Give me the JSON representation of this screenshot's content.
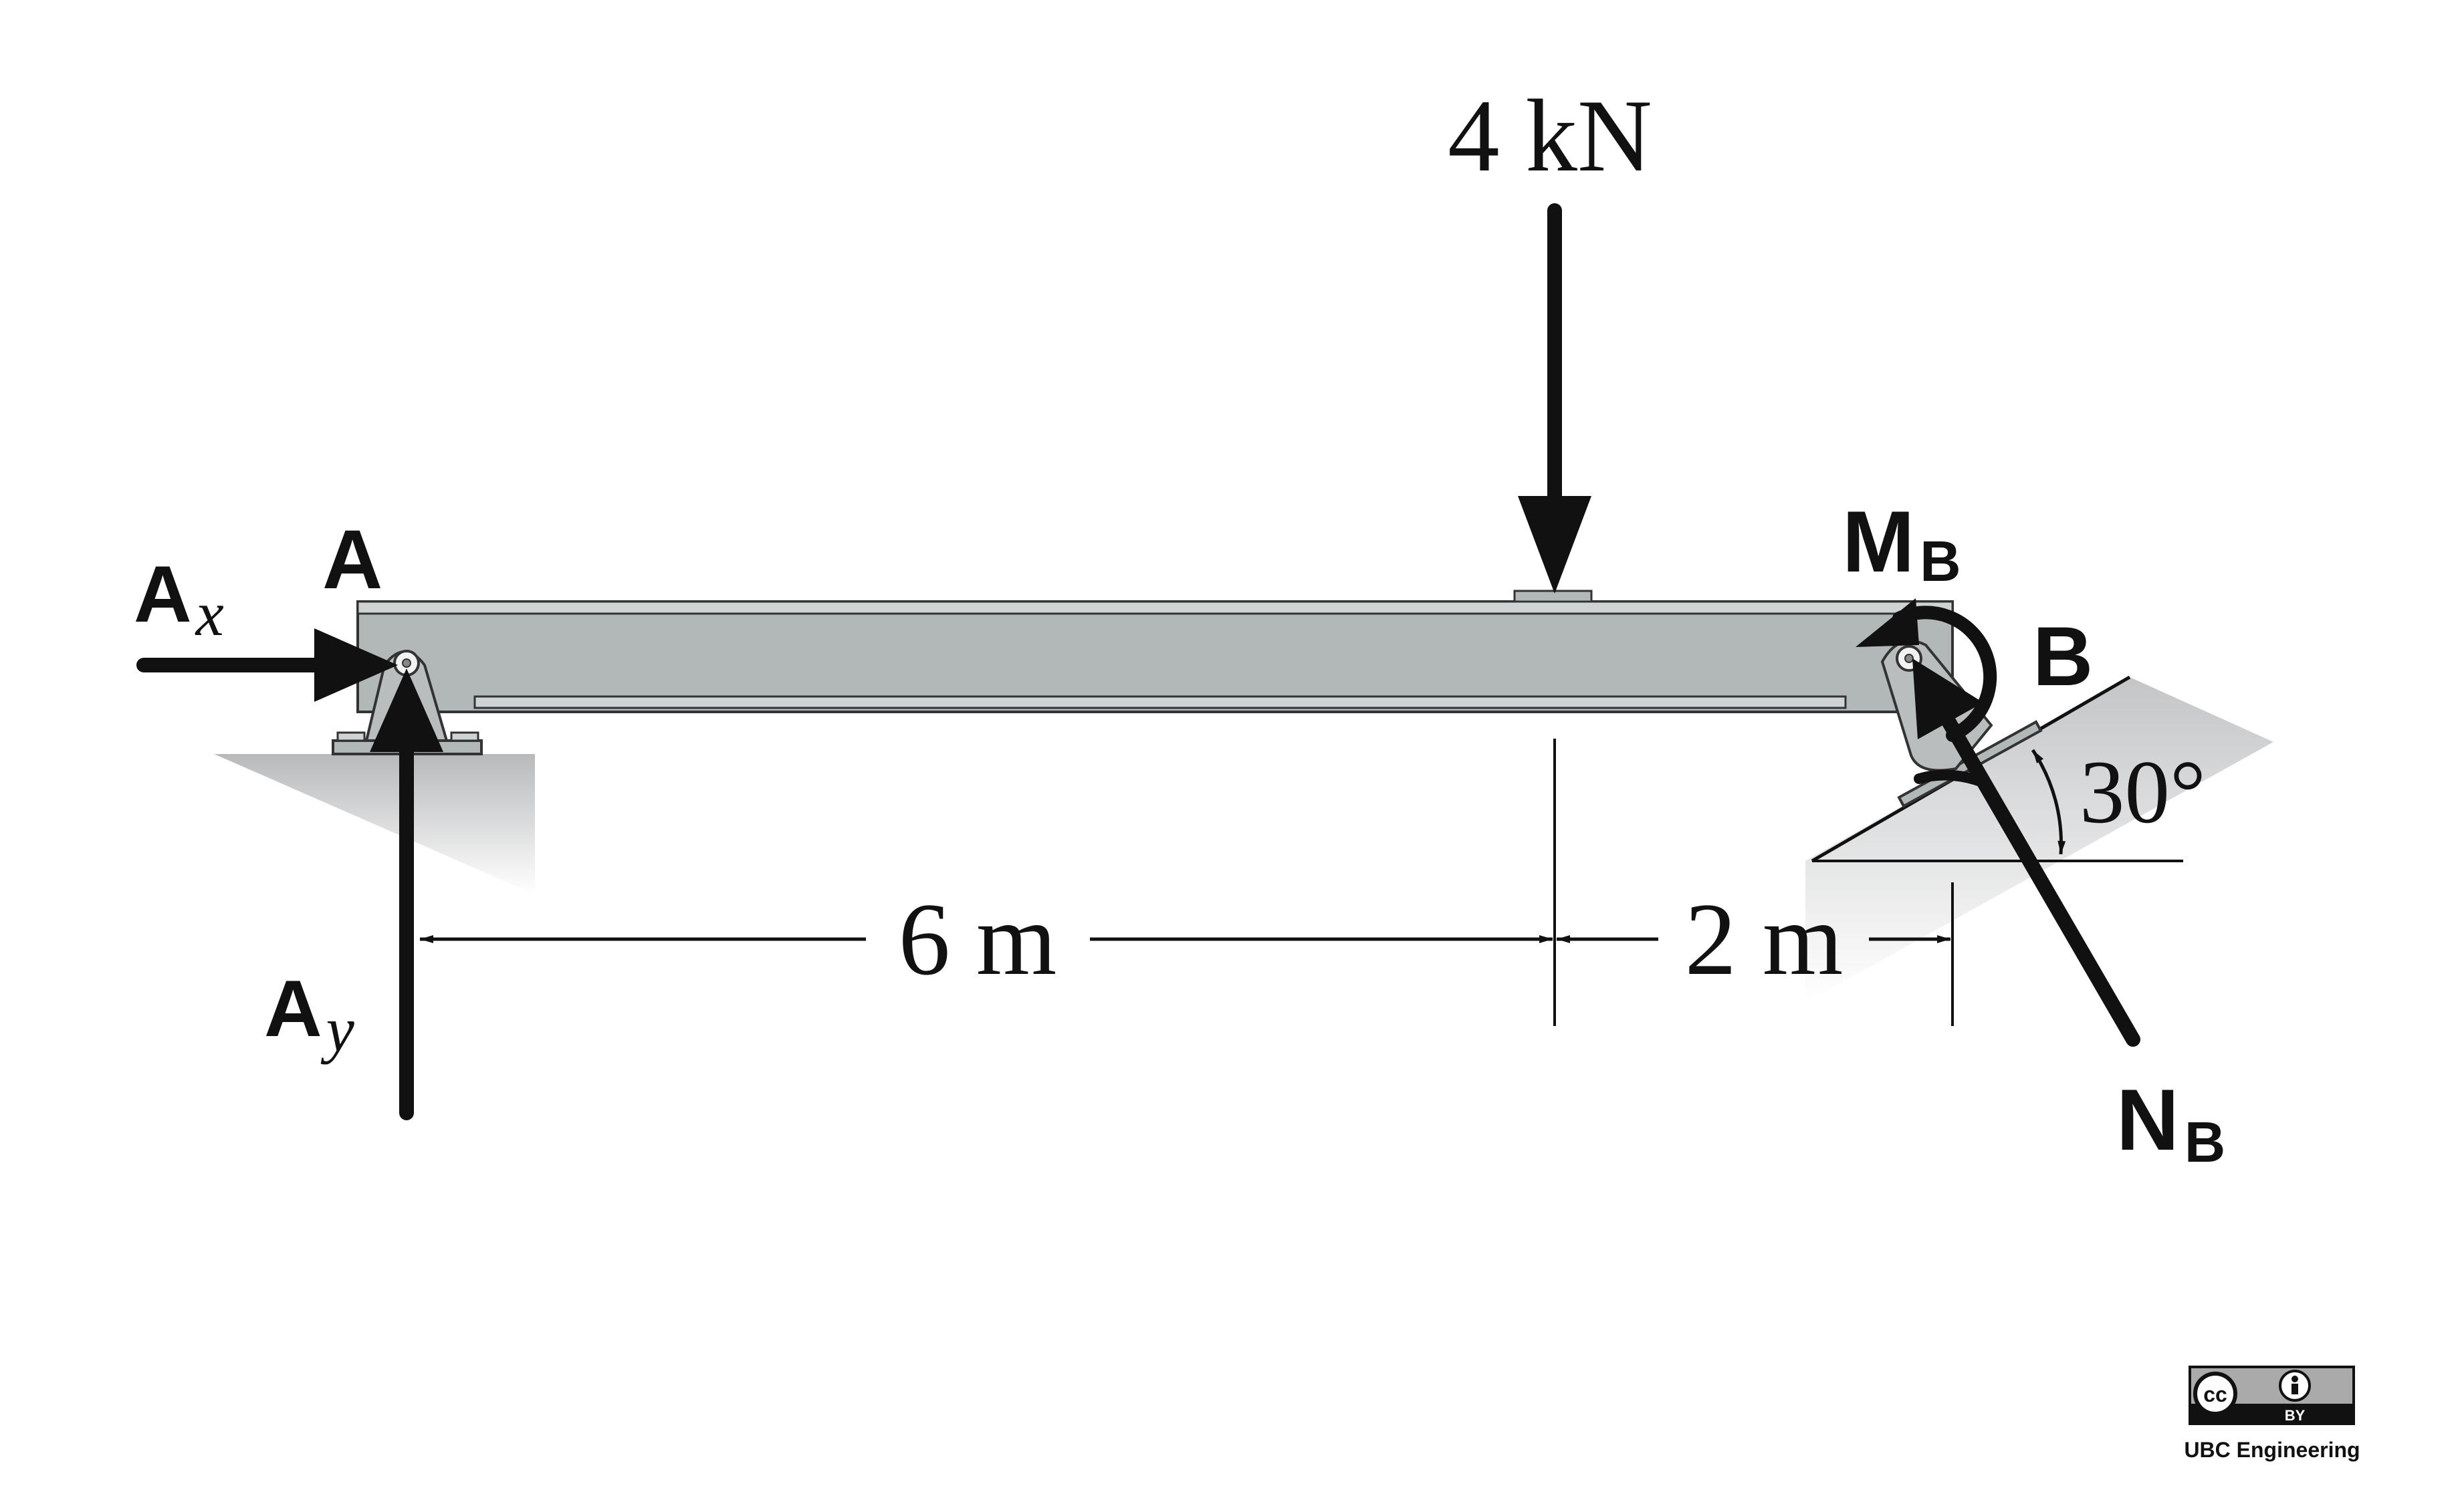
{
  "load": {
    "label": "4 kN"
  },
  "labels": {
    "point_a": "A",
    "point_b": "B",
    "ax_main": "A",
    "ax_sub": "x",
    "ay_main": "A",
    "ay_sub": "y",
    "mb_main": "M",
    "mb_sub": "B",
    "nb_main": "N",
    "nb_sub": "B"
  },
  "dimensions": {
    "left_span": "6 m",
    "right_span": "2 m",
    "angle": "30°"
  },
  "license": {
    "badge_left": "cc",
    "badge_by": "BY",
    "credit": "UBC Engineering"
  },
  "colors": {
    "beam": "#b2b7b8",
    "beam_edge": "#333333",
    "arrow": "#111111",
    "ground": "#c8c9cb"
  }
}
